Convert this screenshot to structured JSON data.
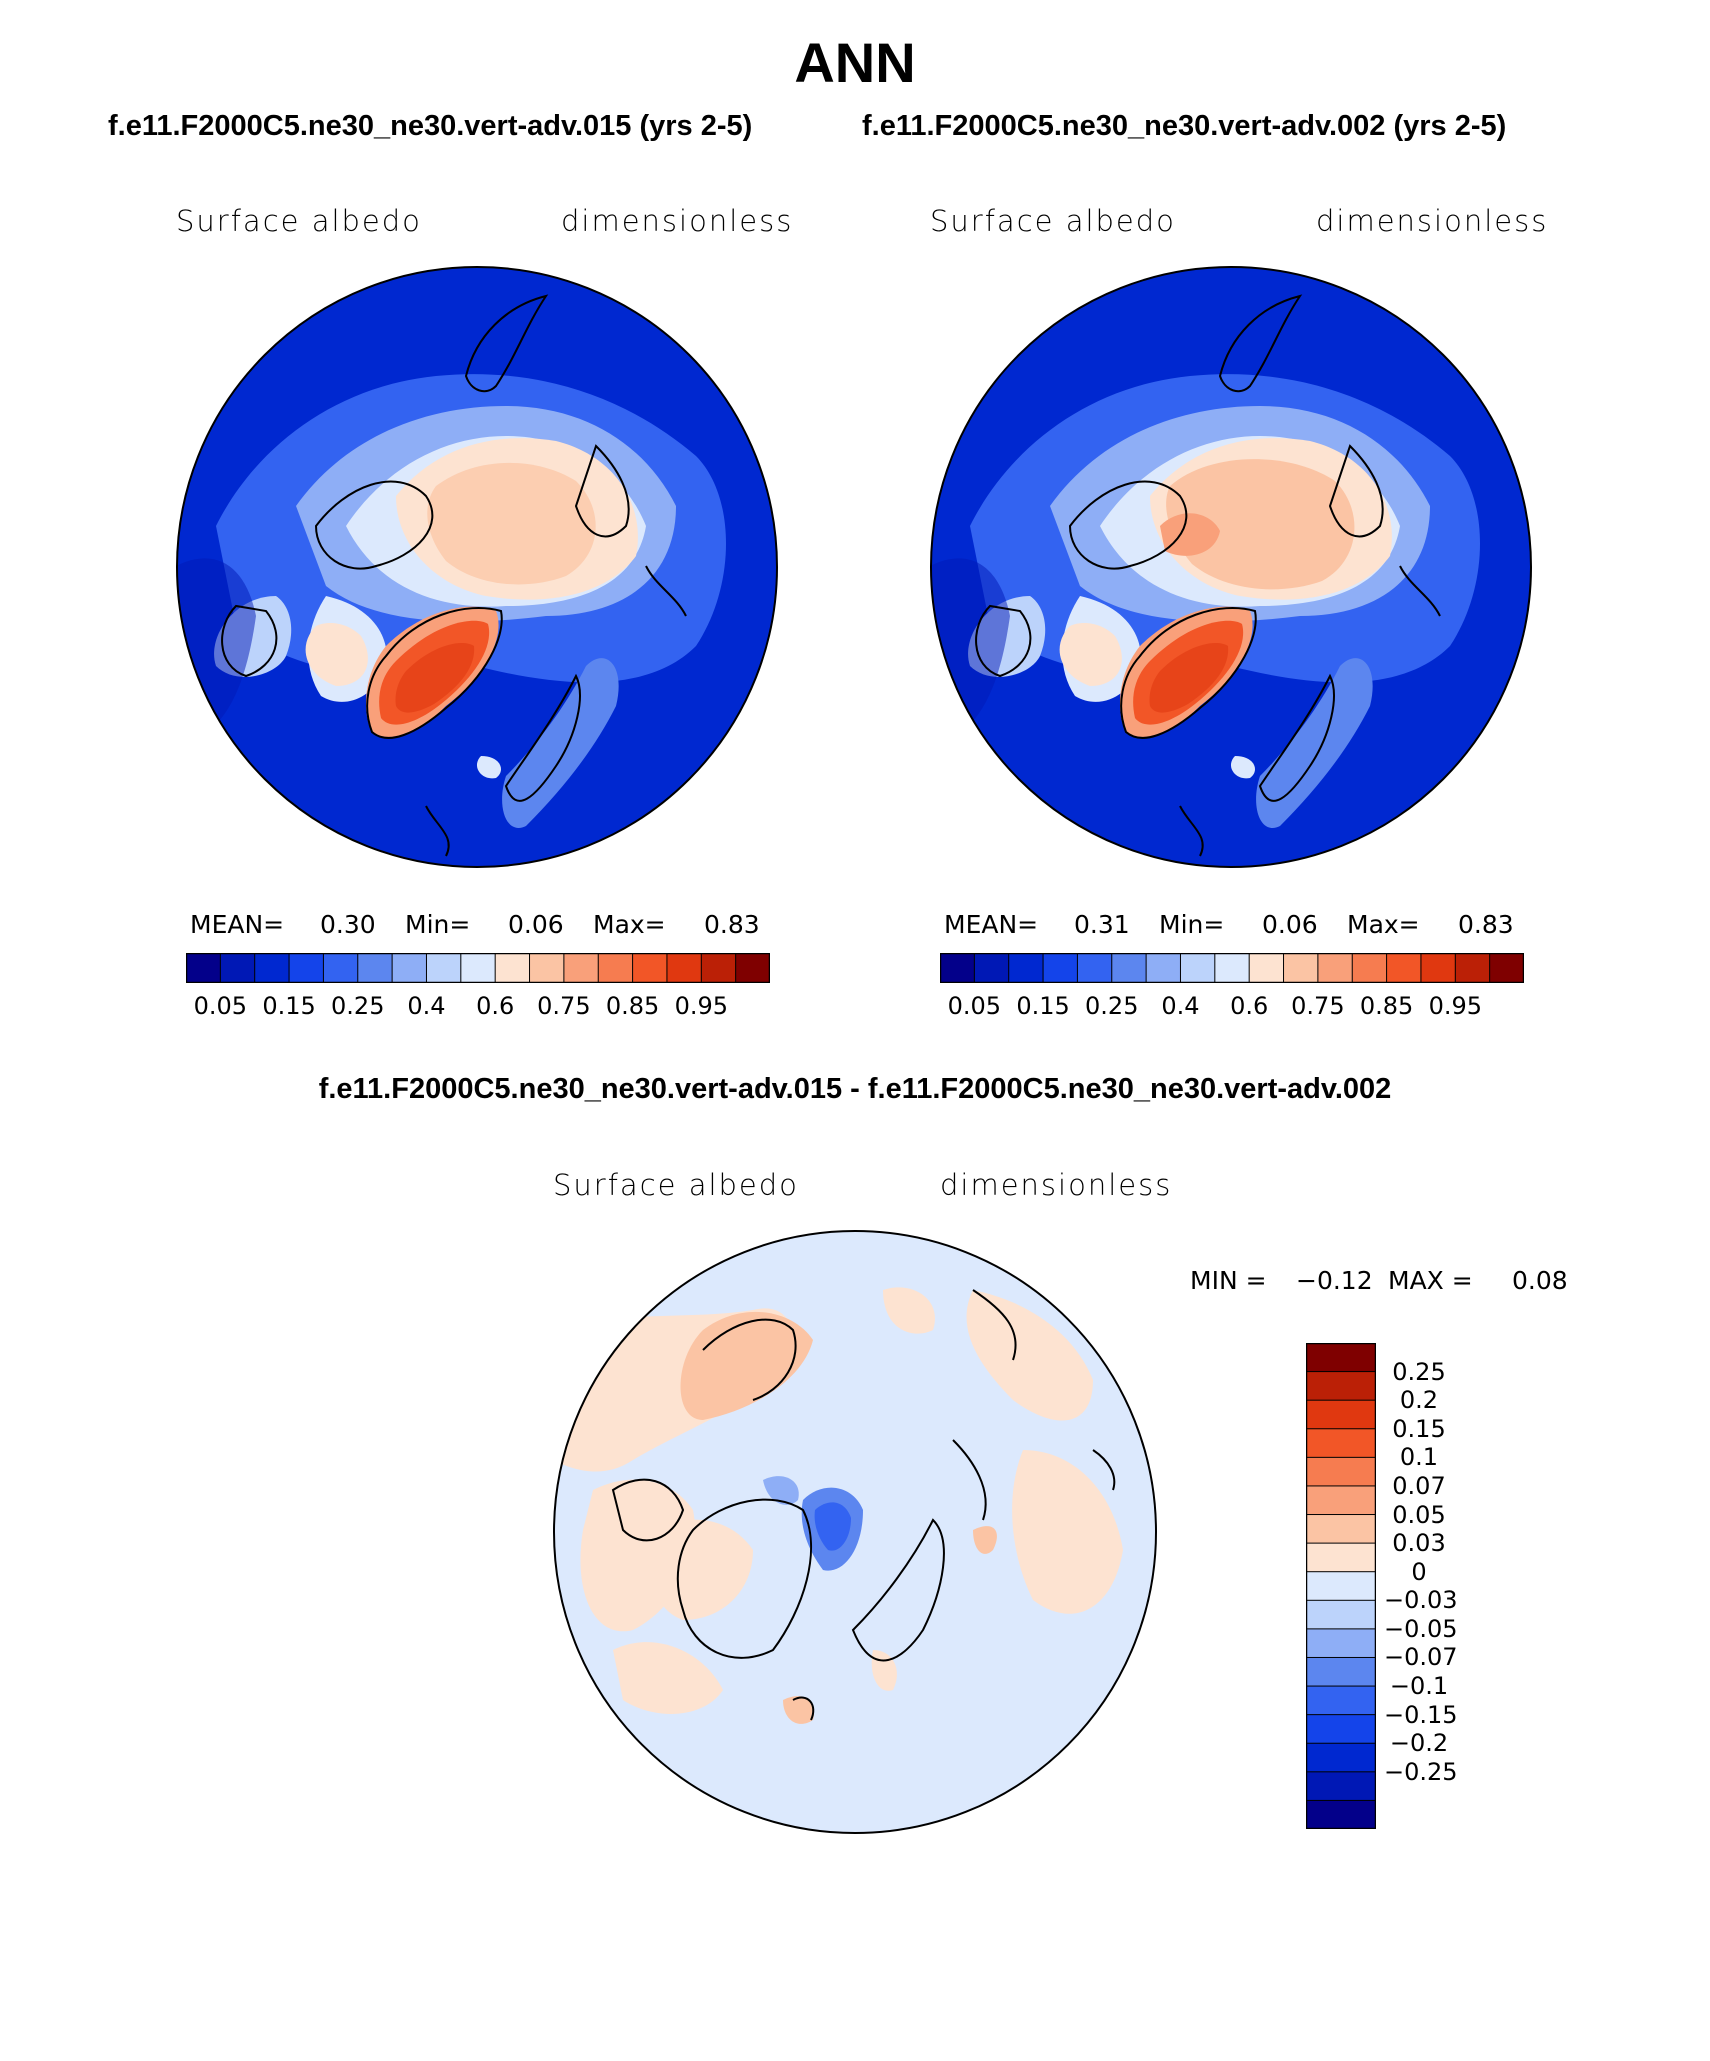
{
  "figure": {
    "season": "ANN",
    "case_title_1": "f.e11.F2000C5.ne30_ne30.vert-adv.015 (yrs 2-5)",
    "case_title_2": "f.e11.F2000C5.ne30_ne30.vert-adv.002 (yrs 2-5)",
    "diff_title": "f.e11.F2000C5.ne30_ne30.vert-adv.015 - f.e11.F2000C5.ne30_ne30.vert-adv.002"
  },
  "panels": [
    {
      "variable": "Surface albedo",
      "units": "dimensionless",
      "mean_label": "MEAN=",
      "mean": "0.30",
      "min_label": "Min=",
      "min": "0.06",
      "max_label": "Max=",
      "max": "0.83"
    },
    {
      "variable": "Surface albedo",
      "units": "dimensionless",
      "mean_label": "MEAN=",
      "mean": "0.31",
      "min_label": "Min=",
      "min": "0.06",
      "max_label": "Max=",
      "max": "0.83"
    },
    {
      "variable": "Surface albedo",
      "units": "dimensionless",
      "min_label": "MIN =",
      "min": "−0.12",
      "max_label": "MAX =",
      "max": "0.08"
    }
  ],
  "colorbar_abs": {
    "colors": [
      "#03008a",
      "#0018b5",
      "#0028d0",
      "#1444ea",
      "#3363f1",
      "#5c86ef",
      "#8eaef6",
      "#bcd3fb",
      "#dce9fd",
      "#fde3d1",
      "#fbc4a4",
      "#f9a07a",
      "#f67c50",
      "#f25627",
      "#e03810",
      "#bb2006",
      "#7f0000"
    ],
    "tick_labels": [
      "0.05",
      "0.15",
      "0.25",
      "0.4",
      "0.6",
      "0.75",
      "0.85",
      "0.95"
    ]
  },
  "colorbar_diff": {
    "colors": [
      "#03008a",
      "#0018b5",
      "#0028d0",
      "#1444ea",
      "#3363f1",
      "#5c86ef",
      "#8eaef6",
      "#bcd3fb",
      "#dce9fd",
      "#fde3d1",
      "#fbc4a4",
      "#f9a07a",
      "#f67c50",
      "#f25627",
      "#e03810",
      "#bb2006",
      "#7f0000"
    ],
    "tick_labels": [
      "0.25",
      "0.2",
      "0.15",
      "0.1",
      "0.07",
      "0.05",
      "0.03",
      "0",
      "−0.03",
      "−0.05",
      "−0.07",
      "−0.1",
      "−0.15",
      "−0.2",
      "−0.25"
    ]
  }
}
